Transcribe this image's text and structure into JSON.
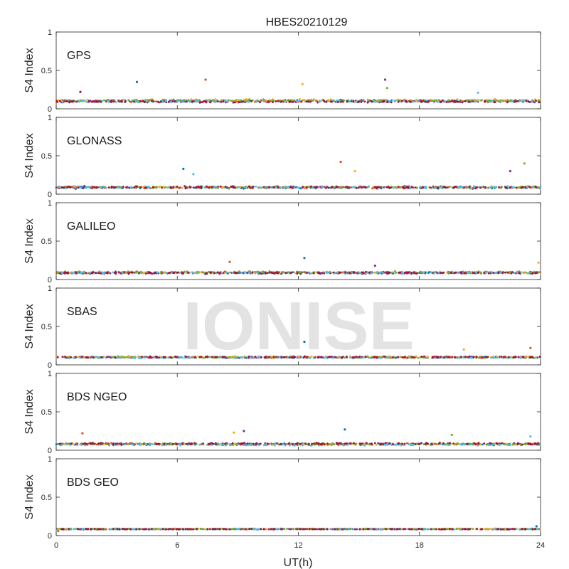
{
  "figure": {
    "title": "HBES20210129",
    "xlabel": "UT(h)",
    "watermark": "IONISE"
  },
  "colors": [
    "#0072BD",
    "#D95319",
    "#EDB120",
    "#7E2F8E",
    "#77AC30",
    "#4DBEEE",
    "#A2142F"
  ],
  "chart_data": [
    {
      "type": "scatter",
      "panel": "GPS",
      "ylabel": "S4 Index",
      "xlim": [
        0,
        24
      ],
      "ylim": [
        0,
        1
      ],
      "xticks": [
        0,
        6,
        12,
        18,
        24
      ],
      "yticks": [
        0,
        0.5,
        1
      ],
      "ytick_labels": [
        "0",
        "0.5",
        "1"
      ],
      "baseline": 0.1,
      "spread": 0.035,
      "outliers": [
        [
          4.0,
          0.35
        ],
        [
          7.4,
          0.38
        ],
        [
          12.2,
          0.32
        ],
        [
          16.3,
          0.38
        ],
        [
          16.4,
          0.27
        ],
        [
          20.9,
          0.21
        ],
        [
          1.2,
          0.22
        ]
      ]
    },
    {
      "type": "scatter",
      "panel": "GLONASS",
      "ylabel": "S4 Index",
      "xlim": [
        0,
        24
      ],
      "ylim": [
        0,
        1
      ],
      "xticks": [
        0,
        6,
        12,
        18,
        24
      ],
      "yticks": [
        0,
        0.5,
        1
      ],
      "ytick_labels": [
        "0",
        "0.5",
        "1"
      ],
      "baseline": 0.09,
      "spread": 0.035,
      "outliers": [
        [
          6.3,
          0.33
        ],
        [
          14.1,
          0.42
        ],
        [
          14.8,
          0.3
        ],
        [
          22.5,
          0.3
        ],
        [
          23.2,
          0.4
        ],
        [
          6.8,
          0.26
        ]
      ]
    },
    {
      "type": "scatter",
      "panel": "GALILEO",
      "ylabel": "S4 Index",
      "xlim": [
        0,
        24
      ],
      "ylim": [
        0,
        1
      ],
      "xticks": [
        0,
        6,
        12,
        18,
        24
      ],
      "yticks": [
        0,
        0.5,
        1
      ],
      "ytick_labels": [
        "0",
        "0.5",
        "1"
      ],
      "baseline": 0.09,
      "spread": 0.03,
      "outliers": [
        [
          12.3,
          0.28
        ],
        [
          8.6,
          0.23
        ],
        [
          23.9,
          0.22
        ],
        [
          15.8,
          0.18
        ]
      ]
    },
    {
      "type": "scatter",
      "panel": "SBAS",
      "ylabel": "S4 Index",
      "xlim": [
        0,
        24
      ],
      "ylim": [
        0,
        1
      ],
      "xticks": [
        0,
        6,
        12,
        18,
        24
      ],
      "yticks": [
        0,
        0.5,
        1
      ],
      "ytick_labels": [
        "0",
        "0.5",
        "1"
      ],
      "baseline": 0.1,
      "spread": 0.025,
      "outliers": [
        [
          12.3,
          0.3
        ],
        [
          23.5,
          0.22
        ],
        [
          20.2,
          0.2
        ]
      ]
    },
    {
      "type": "scatter",
      "panel": "BDS NGEO",
      "ylabel": "S4 Index",
      "xlim": [
        0,
        24
      ],
      "ylim": [
        0,
        1
      ],
      "xticks": [
        0,
        6,
        12,
        18,
        24
      ],
      "yticks": [
        0,
        0.5,
        1
      ],
      "ytick_labels": [
        "0",
        "0.5",
        "1"
      ],
      "baseline": 0.08,
      "spread": 0.035,
      "outliers": [
        [
          14.3,
          0.27
        ],
        [
          1.3,
          0.22
        ],
        [
          8.8,
          0.23
        ],
        [
          9.3,
          0.25
        ],
        [
          19.6,
          0.2
        ],
        [
          23.5,
          0.18
        ]
      ]
    },
    {
      "type": "scatter",
      "panel": "BDS GEO",
      "ylabel": "S4 Index",
      "xlim": [
        0,
        24
      ],
      "ylim": [
        0,
        1
      ],
      "xticks": [
        0,
        6,
        12,
        18,
        24
      ],
      "yticks": [
        0,
        0.5,
        1
      ],
      "ytick_labels": [
        "0",
        "0.5",
        "1"
      ],
      "baseline": 0.085,
      "spread": 0.012,
      "outliers": [
        [
          23.8,
          0.12
        ],
        [
          0.1,
          0.06
        ]
      ]
    }
  ]
}
